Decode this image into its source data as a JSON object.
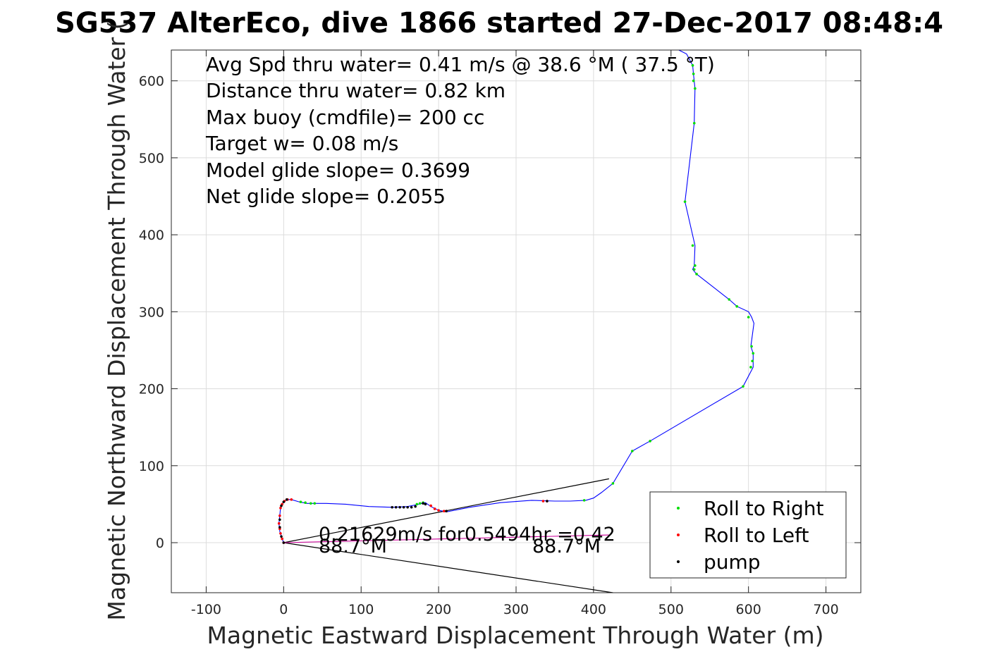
{
  "title": "SG537 AlterEco, dive 1866 started 27-Dec-2017 08:48:4",
  "chart_data": {
    "type": "line",
    "title": "SG537 AlterEco, dive 1866 started 27-Dec-2017 08:48:4",
    "xlabel": "Magnetic Eastward Displacement Through Water (m)",
    "ylabel": "Magnetic Northward Displacement Through Water (",
    "xlim": [
      -145,
      745
    ],
    "ylim": [
      -65,
      640
    ],
    "xticks": [
      -100,
      0,
      100,
      200,
      300,
      400,
      500,
      600,
      700
    ],
    "yticks": [
      0,
      100,
      200,
      300,
      400,
      500,
      600
    ],
    "grid": true,
    "legend_position": "bottom-right",
    "legend": [
      "Roll to Right",
      "Roll to Left",
      "pump"
    ],
    "info_lines": [
      "Avg Spd thru water=  0.41 m/s @  38.6 °M ( 37.5 °T)",
      "Distance thru water=  0.82 km",
      "Max buoy (cmdfile)= 200 cc",
      "Target w= 0.08 m/s",
      "Model glide slope= 0.3699",
      "Net glide slope= 0.2055"
    ],
    "annotations": {
      "current": "0.21629m/s for0.5494hr =0.42",
      "heading_left": "88.7°M",
      "heading_right": "88.7°M"
    },
    "series": [
      {
        "name": "dive track",
        "color": "#0000ff",
        "x": [
          0,
          -2,
          -5,
          -6,
          -5,
          -4,
          -2,
          1,
          5,
          10,
          20,
          30,
          40,
          55,
          80,
          110,
          140,
          160,
          170,
          178,
          183,
          190,
          200,
          210,
          240,
          280,
          320,
          350,
          370,
          390,
          400,
          410,
          425,
          450,
          473,
          593,
          606,
          606,
          603,
          607,
          604,
          600,
          585,
          575,
          533,
          528,
          530,
          531,
          518,
          530,
          531,
          529,
          528,
          520,
          510
        ],
        "y": [
          0,
          5,
          15,
          25,
          35,
          45,
          50,
          54,
          56,
          56,
          53,
          51,
          51,
          51,
          50,
          47,
          46,
          47,
          49,
          51,
          52,
          47,
          42,
          40,
          46,
          52,
          55,
          54,
          54,
          55,
          58,
          65,
          77,
          119,
          132,
          203,
          228,
          246,
          255,
          285,
          293,
          300,
          307,
          316,
          349,
          355,
          360,
          386,
          443,
          545,
          590,
          609,
          620,
          635,
          640
        ]
      },
      {
        "name": "surface drift",
        "color": "#cc0099",
        "x": [
          0,
          420
        ],
        "y": [
          0,
          10
        ]
      }
    ],
    "points": {
      "roll_right": {
        "color": "#00dd00",
        "x": [
          22,
          28,
          35,
          40,
          172,
          176,
          180,
          388,
          425,
          450,
          473,
          593,
          603,
          605,
          606,
          604,
          600,
          585,
          575,
          533,
          530,
          531,
          528,
          530,
          531,
          529,
          528,
          518,
          529
        ],
        "y": [
          53,
          52,
          51,
          51,
          50,
          51,
          52,
          55,
          77,
          119,
          132,
          203,
          228,
          236,
          246,
          255,
          293,
          307,
          316,
          349,
          355,
          360,
          386,
          545,
          590,
          609,
          620,
          443,
          600
        ]
      },
      "roll_left": {
        "color": "#ff0000",
        "x": [
          0,
          -2,
          -4,
          -5,
          -6,
          -5,
          -4,
          -2,
          1,
          5,
          10,
          190,
          195,
          200,
          207,
          335,
          340
        ],
        "y": [
          0,
          5,
          12,
          18,
          25,
          35,
          45,
          50,
          54,
          56,
          56,
          48,
          44,
          42,
          41,
          54,
          54
        ]
      },
      "pump": {
        "color": "#000000",
        "x": [
          0,
          -3,
          -5,
          -5,
          -3,
          0,
          4,
          140,
          145,
          150,
          155,
          160,
          165,
          170,
          180,
          183,
          210,
          340
        ],
        "y": [
          0,
          8,
          20,
          30,
          48,
          53,
          56,
          46,
          46,
          46,
          46,
          46,
          46,
          47,
          51,
          50,
          41,
          54
        ]
      }
    },
    "reference_lines": {
      "color": "#000000",
      "lines": [
        {
          "x": [
            0,
            420
          ],
          "y": [
            0,
            83
          ]
        },
        {
          "x": [
            0,
            425
          ],
          "y": [
            0,
            -65
          ]
        }
      ]
    }
  }
}
